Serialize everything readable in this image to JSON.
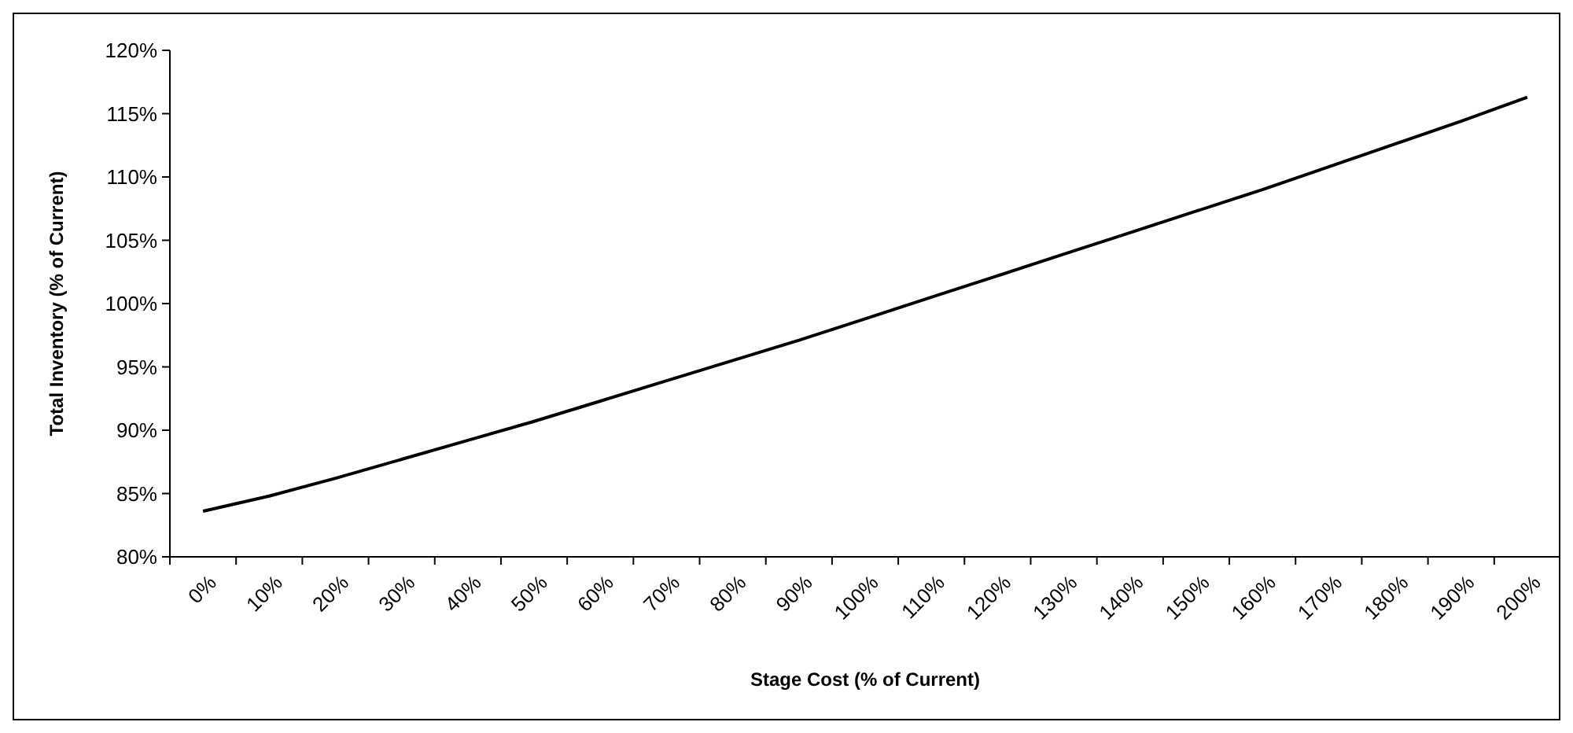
{
  "chart_data": {
    "type": "line",
    "xlabel": "Stage Cost (% of Current)",
    "ylabel": "Total Inventory (% of Current)",
    "categories": [
      "0%",
      "10%",
      "20%",
      "30%",
      "40%",
      "50%",
      "60%",
      "70%",
      "80%",
      "90%",
      "100%",
      "110%",
      "120%",
      "130%",
      "140%",
      "150%",
      "160%",
      "170%",
      "180%",
      "190%",
      "200%"
    ],
    "series": [
      {
        "color": "#000000",
        "values": [
          83.6,
          84.8,
          86.2,
          87.7,
          89.2,
          90.7,
          92.3,
          93.9,
          95.5,
          97.1,
          98.8,
          100.5,
          102.2,
          103.9,
          105.6,
          107.3,
          109.0,
          110.8,
          112.6,
          114.4,
          116.3
        ]
      }
    ],
    "ylim": [
      80,
      120
    ],
    "yticks": [
      {
        "value": 80,
        "label": "80%"
      },
      {
        "value": 85,
        "label": "85%"
      },
      {
        "value": 90,
        "label": "90%"
      },
      {
        "value": 95,
        "label": "95%"
      },
      {
        "value": 100,
        "label": "100%"
      },
      {
        "value": 105,
        "label": "105%"
      },
      {
        "value": 110,
        "label": "110%"
      },
      {
        "value": 115,
        "label": "115%"
      },
      {
        "value": 120,
        "label": "120%"
      }
    ],
    "grid": false,
    "marker": "none",
    "line_style": "solid"
  }
}
